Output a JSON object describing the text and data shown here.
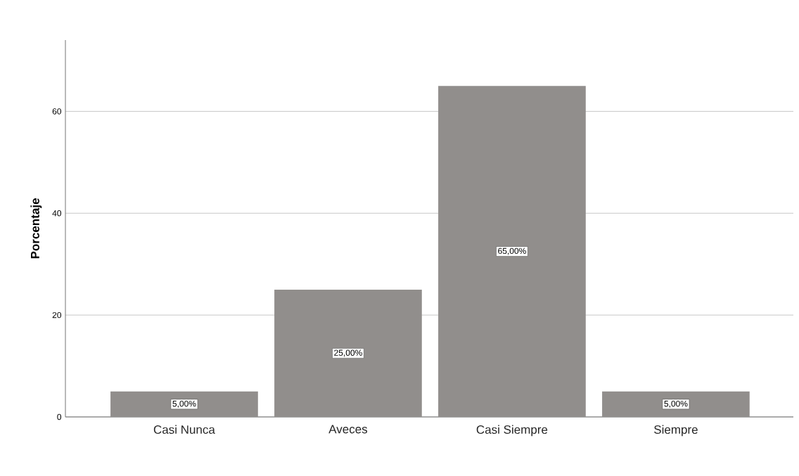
{
  "chart_data": {
    "type": "bar",
    "ylabel": "Porcentaje",
    "categories": [
      "Casi Nunca",
      "Aveces",
      "Casi Siempre",
      "Siempre"
    ],
    "values": [
      5,
      25,
      65,
      5
    ],
    "value_labels": [
      "5,00%",
      "25,00%",
      "65,00%",
      "5,00%"
    ],
    "color": "#918e8c",
    "ylim": [
      0,
      74
    ],
    "yticks": [
      0,
      20,
      40,
      60
    ],
    "grid": "y"
  }
}
